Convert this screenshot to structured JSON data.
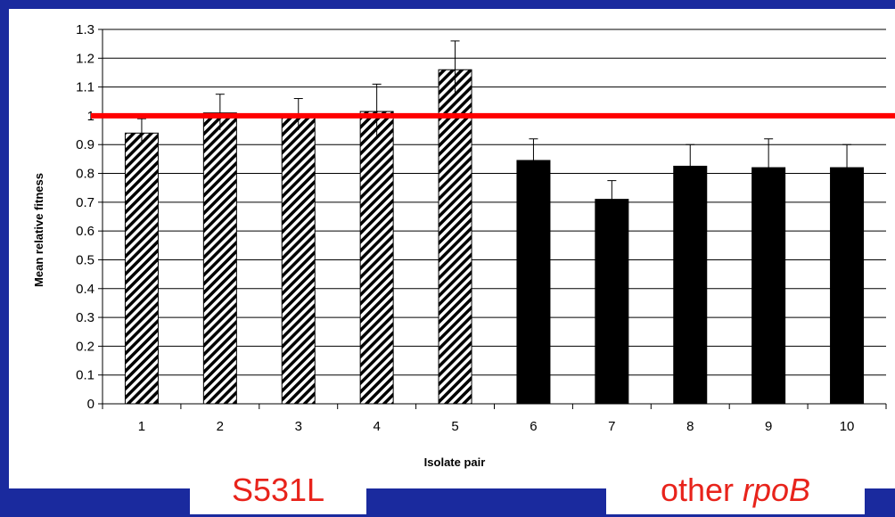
{
  "chart_data": {
    "type": "bar",
    "ylabel": "Mean relative fitness",
    "xlabel": "Isolate pair",
    "ylim": [
      0,
      1.3
    ],
    "yticks": [
      "0",
      "0.1",
      "0.2",
      "0.3",
      "0.4",
      "0.5",
      "0.6",
      "0.7",
      "0.8",
      "0.9",
      "1",
      "1.1",
      "1.2",
      "1.3"
    ],
    "grid": true,
    "categories": [
      "1",
      "2",
      "3",
      "4",
      "5",
      "6",
      "7",
      "8",
      "9",
      "10"
    ],
    "values": [
      0.94,
      1.01,
      1.0,
      1.015,
      1.16,
      0.845,
      0.71,
      0.825,
      0.82,
      0.82
    ],
    "error_upper": [
      0.99,
      1.075,
      1.06,
      1.11,
      1.26,
      0.92,
      0.775,
      0.9,
      0.92,
      0.9
    ],
    "error_lower": [
      0.9,
      0.95,
      0.95,
      0.92,
      1.07,
      0.845,
      0.71,
      0.825,
      0.82,
      0.82
    ],
    "bar_patterns": [
      "hatched",
      "hatched",
      "hatched",
      "hatched",
      "hatched",
      "solid",
      "solid",
      "solid",
      "solid",
      "solid"
    ],
    "reference_line": {
      "y": 1.0,
      "color": "#ff0000"
    },
    "bar_color": "#000000"
  },
  "annotations": {
    "group_left": "S531L",
    "group_right_prefix": "other ",
    "group_right_italic": "rpoB"
  },
  "colors": {
    "background": "#1a2a9e",
    "label_text": "#e8231b"
  }
}
